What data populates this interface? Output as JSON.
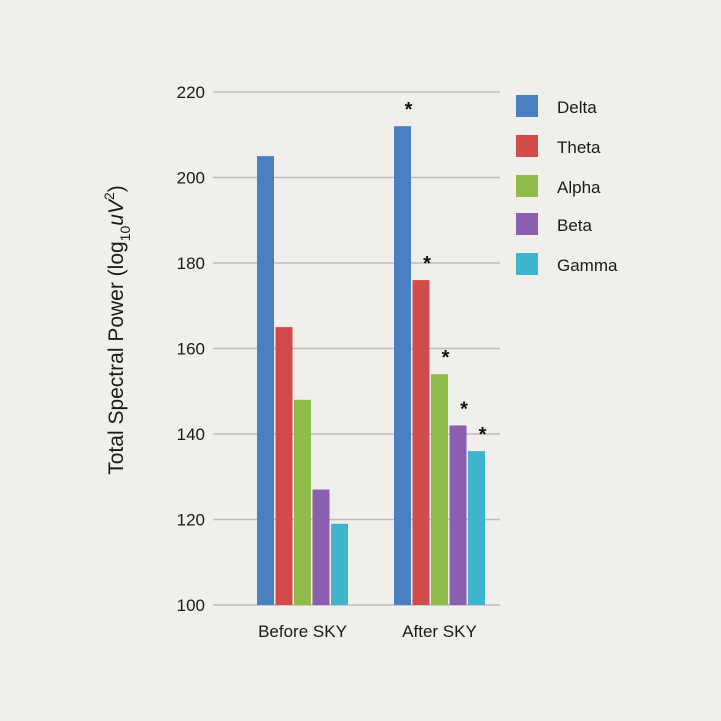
{
  "chart_data": {
    "type": "bar",
    "title": "",
    "xlabel": "",
    "ylabel_parts": {
      "prefix": "Total Spectral Power (log",
      "sub": "10",
      "mid": "uV",
      "sup": "2",
      "suffix": ")"
    },
    "ylim": [
      100,
      220
    ],
    "yticks": [
      "100",
      "120",
      "140",
      "160",
      "180",
      "200",
      "220"
    ],
    "categories": [
      "Before SKY",
      "After SKY"
    ],
    "series": [
      {
        "name": "Delta",
        "color": "#4a7fc1",
        "values": [
          205,
          212
        ],
        "marks": [
          "",
          "*"
        ]
      },
      {
        "name": "Theta",
        "color": "#d24b4b",
        "values": [
          165,
          176
        ],
        "marks": [
          "",
          "*"
        ]
      },
      {
        "name": "Alpha",
        "color": "#8fbb4a",
        "values": [
          148,
          154
        ],
        "marks": [
          "",
          "*"
        ]
      },
      {
        "name": "Beta",
        "color": "#8a5fb0",
        "values": [
          127,
          142
        ],
        "marks": [
          "",
          "*"
        ]
      },
      {
        "name": "Gamma",
        "color": "#40b4cc",
        "values": [
          119,
          136
        ],
        "marks": [
          "",
          "*"
        ]
      }
    ],
    "legend_position": "right",
    "grid": true
  }
}
